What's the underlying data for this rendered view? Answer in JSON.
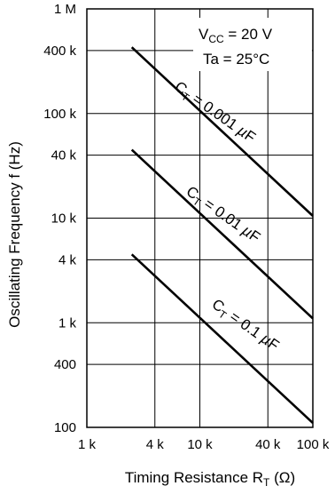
{
  "chart_data": {
    "type": "line",
    "title": "",
    "xlabel": {
      "main": "Timing Resistance R",
      "sub": "T",
      "unit": " (Ω)"
    },
    "ylabel": "Oscillating Frequency f (Hz)",
    "x_scale": "log",
    "y_scale": "log",
    "xlim": [
      1000,
      100000
    ],
    "ylim": [
      100,
      1000000
    ],
    "x_ticks": [
      {
        "value": 1000,
        "label": "1 k"
      },
      {
        "value": 4000,
        "label": "4 k"
      },
      {
        "value": 10000,
        "label": "10 k"
      },
      {
        "value": 40000,
        "label": "40 k"
      },
      {
        "value": 100000,
        "label": "100 k"
      }
    ],
    "y_ticks": [
      {
        "value": 100,
        "label": "100"
      },
      {
        "value": 400,
        "label": "400"
      },
      {
        "value": 1000,
        "label": "1 k"
      },
      {
        "value": 4000,
        "label": "4 k"
      },
      {
        "value": 10000,
        "label": "10 k"
      },
      {
        "value": 40000,
        "label": "40 k"
      },
      {
        "value": 100000,
        "label": "100 k"
      },
      {
        "value": 400000,
        "label": "400 k"
      },
      {
        "value": 1000000,
        "label": "1 M"
      }
    ],
    "grid": true,
    "conditions": {
      "line1": {
        "main": "V",
        "sub": "CC",
        "rest": " = 20 V"
      },
      "line2": "Ta = 25°C"
    },
    "series": [
      {
        "name": "C_T = 0.001 µF",
        "label": {
          "c": "C",
          "sub": "T",
          "eq": " = 0.001 ",
          "mu": "µ",
          "unit": "F"
        },
        "x": [
          2500,
          100000
        ],
        "y": [
          430000,
          10500
        ]
      },
      {
        "name": "C_T = 0.01 µF",
        "label": {
          "c": "C",
          "sub": "T",
          "eq": " = 0.01 ",
          "mu": "µ",
          "unit": "F"
        },
        "x": [
          2500,
          100000
        ],
        "y": [
          45000,
          1100
        ]
      },
      {
        "name": "C_T = 0.1 µF",
        "label": {
          "c": "C",
          "sub": "T",
          "eq": " = 0.1 ",
          "mu": "µ",
          "unit": "F"
        },
        "x": [
          2500,
          100000
        ],
        "y": [
          4500,
          110
        ]
      }
    ],
    "colors": {
      "line": "#000000",
      "grid": "#000000",
      "background": "#ffffff"
    }
  }
}
